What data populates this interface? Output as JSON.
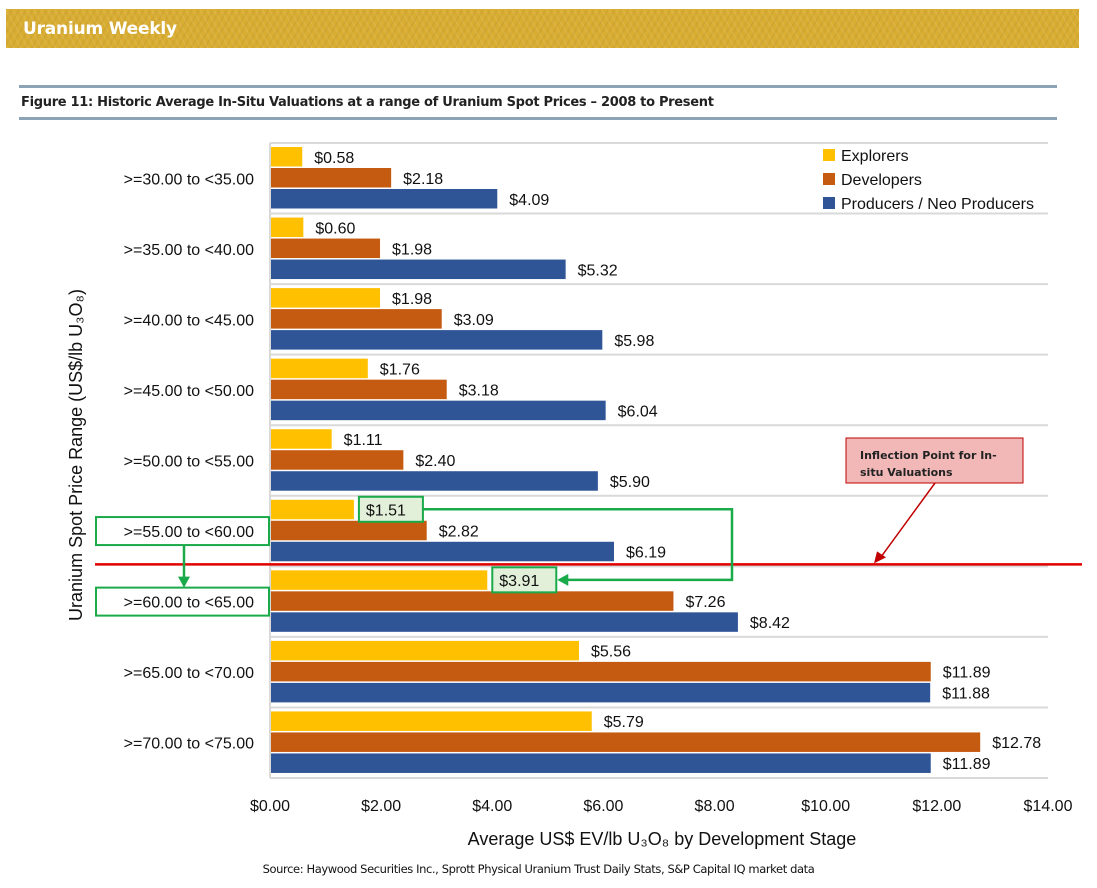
{
  "header": {
    "banner_title": "Uranium Weekly",
    "banner_color": "#d9ad32"
  },
  "figure": {
    "title": "Figure 11:  Historic Average In-Situ Valuations at a range of Uranium Spot Prices – 2008 to Present",
    "source": "Source: Haywood Securities Inc., Sprott Physical Uranium Trust Daily Stats, S&P Capital IQ market data"
  },
  "chart_data": {
    "type": "bar",
    "orientation": "horizontal",
    "title": "Historic Average In-Situ Valuations at a range of Uranium Spot Prices – 2008 to Present",
    "xlabel": "Average US$ EV/lb U3O8 by Development Stage",
    "ylabel": "Uranium Spot Price Range (US$/lb U3O8)",
    "xlim": [
      0,
      14
    ],
    "x_ticks": [
      0,
      2,
      4,
      6,
      8,
      10,
      12,
      14
    ],
    "x_tick_labels": [
      "$0.00",
      "$2.00",
      "$4.00",
      "$6.00",
      "$8.00",
      "$10.00",
      "$12.00",
      "$14.00"
    ],
    "grid": "horizontal category separators",
    "legend_position": "top-right",
    "categories": [
      ">=30.00 to <35.00",
      ">=35.00 to <40.00",
      ">=40.00 to <45.00",
      ">=45.00 to <50.00",
      ">=50.00 to <55.00",
      ">=55.00 to <60.00",
      ">=60.00 to <65.00",
      ">=65.00 to <70.00",
      ">=70.00 to <75.00"
    ],
    "series": [
      {
        "name": "Explorers",
        "color": "#ffc000",
        "values": [
          0.58,
          0.6,
          1.98,
          1.76,
          1.11,
          1.51,
          3.91,
          5.56,
          5.79
        ],
        "labels": [
          "$0.58",
          "$0.60",
          "$1.98",
          "$1.76",
          "$1.11",
          "$1.51",
          "$3.91",
          "$5.56",
          "$5.79"
        ]
      },
      {
        "name": "Developers",
        "color": "#c55a11",
        "values": [
          2.18,
          1.98,
          3.09,
          3.18,
          2.4,
          2.82,
          7.26,
          11.89,
          12.78
        ],
        "labels": [
          "$2.18",
          "$1.98",
          "$3.09",
          "$3.18",
          "$2.40",
          "$2.82",
          "$7.26",
          "$11.89",
          "$12.78"
        ]
      },
      {
        "name": "Producers / Neo Producers",
        "color": "#2f5597",
        "values": [
          4.09,
          5.32,
          5.98,
          6.04,
          5.9,
          6.19,
          8.42,
          11.88,
          11.89
        ],
        "labels": [
          "$4.09",
          "$5.32",
          "$5.98",
          "$6.04",
          "$5.90",
          "$6.19",
          "$8.42",
          "$11.88",
          "$11.89"
        ]
      }
    ],
    "annotations": {
      "inflection_line": {
        "between_categories": [
          ">=55.00 to <60.00",
          ">=60.00 to <65.00"
        ],
        "color": "#e00000"
      },
      "inflection_callout": {
        "text_line1": "Inflection Point for In-",
        "text_line2": "situ Valuations",
        "fill": "#f2b8b8",
        "border": "#c00000"
      },
      "highlighted_categories": [
        ">=55.00 to <60.00",
        ">=60.00 to <65.00"
      ],
      "highlighted_values": [
        "$1.51",
        "$3.91"
      ],
      "highlight_color": "#1aaa4a",
      "highlight_fill": "#e2efd9"
    }
  }
}
